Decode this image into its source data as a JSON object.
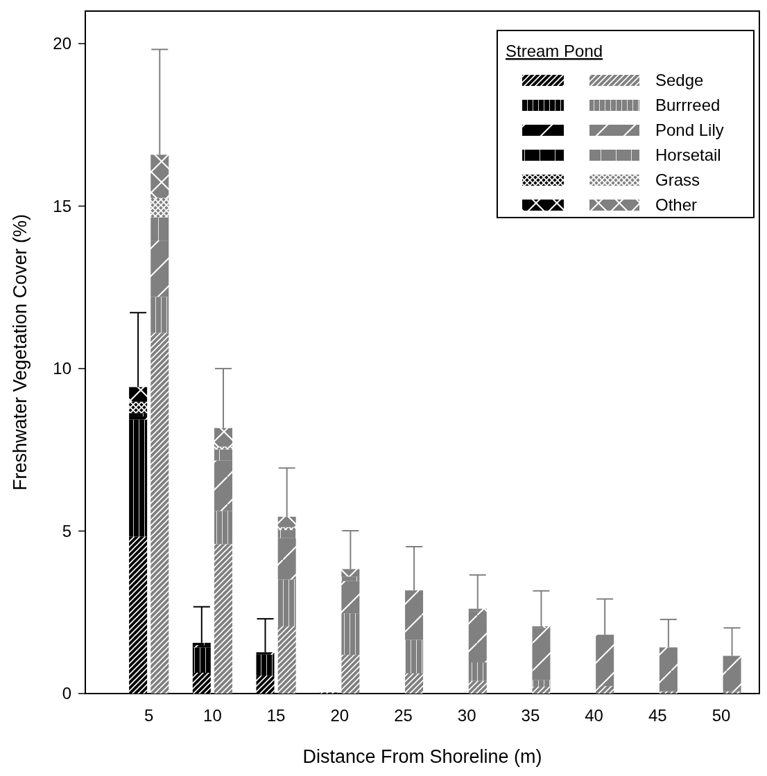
{
  "chart_data": {
    "type": "bar",
    "xlabel": "Distance From Shoreline (m)",
    "ylabel": "Freshwater Vegetation Cover (%)",
    "legend_title": "Stream Pond",
    "legend": "top right",
    "grid": false,
    "xlim": [
      0,
      53
    ],
    "xticks": [
      5,
      10,
      15,
      20,
      25,
      30,
      35,
      40,
      45,
      50
    ],
    "ylim": [
      0,
      21
    ],
    "yticks": [
      0,
      5,
      10,
      15,
      20
    ],
    "series": [
      {
        "color": "#000000",
        "x": [
          4.15,
          9.15,
          14.15,
          19.15
        ],
        "base": [
          0,
          0,
          0,
          0
        ],
        "values": [
          4.83,
          0.64,
          0.55,
          0.03
        ]
      },
      {
        "color": "#000000",
        "x": [
          4.15,
          9.15,
          14.15
        ],
        "base": [
          4.83,
          0.64,
          0.55
        ],
        "values": [
          3.6,
          0.78,
          0.65
        ]
      },
      {
        "color": "#000000",
        "x": [
          4.15,
          9.15,
          14.15
        ],
        "base": [
          8.43,
          1.42,
          1.2
        ],
        "values": [
          0.1,
          0.07,
          0.07
        ],
        "errors": [
          null,
          null,
          [
            1.27,
            2.3
          ]
        ]
      },
      {
        "color": "#000000",
        "x": [
          4.15,
          9.15
        ],
        "base": [
          8.53,
          1.49
        ],
        "values": [
          0.1,
          0.07
        ],
        "errors": [
          null,
          [
            1.56,
            2.67
          ]
        ]
      },
      {
        "color": "#000000",
        "x": [
          4.15
        ],
        "base": [
          8.63
        ],
        "values": [
          0.35
        ]
      },
      {
        "color": "#000000",
        "x": [
          4.15
        ],
        "base": [
          8.98
        ],
        "values": [
          0.45
        ],
        "errors": [
          [
            9.43,
            11.72
          ]
        ]
      },
      {
        "name": "Sedge",
        "color": "#808080",
        "x": [
          5.85,
          10.85,
          15.85,
          20.85,
          25.85,
          30.85,
          35.85,
          40.85,
          45.85,
          50.85
        ],
        "base": [
          0,
          0,
          0,
          0,
          0,
          0,
          0,
          0,
          0,
          0
        ],
        "values": [
          11.1,
          4.6,
          2.07,
          1.19,
          0.62,
          0.39,
          0.21,
          0.23,
          0.07,
          0.07
        ]
      },
      {
        "name": "Burrreed",
        "color": "#808080",
        "x": [
          5.85,
          10.85,
          15.85,
          20.85,
          25.85,
          30.85,
          35.85
        ],
        "base": [
          11.1,
          4.6,
          2.07,
          1.19,
          0.62,
          0.39,
          0.21
        ],
        "values": [
          1.11,
          1.02,
          1.44,
          1.28,
          1.03,
          0.57,
          0.2
        ]
      },
      {
        "name": "Pond Lily",
        "color": "#808080",
        "x": [
          5.85,
          10.85,
          15.85,
          20.85,
          25.85,
          30.85,
          35.85,
          40.85,
          45.85,
          50.85
        ],
        "base": [
          12.21,
          5.62,
          3.51,
          2.47,
          1.65,
          0.96,
          0.41,
          0.23,
          0.07,
          0.07
        ],
        "values": [
          1.73,
          1.55,
          1.27,
          0.99,
          1.51,
          1.56,
          1.61,
          1.58,
          1.35,
          1.09
        ],
        "errors": [
          null,
          null,
          null,
          null,
          null,
          null,
          null,
          [
            1.81,
            2.91
          ],
          [
            1.42,
            2.28
          ],
          [
            1.16,
            2.02
          ]
        ]
      },
      {
        "name": "Horsetail",
        "color": "#808080",
        "x": [
          5.85,
          10.85,
          15.85,
          20.85
        ],
        "base": [
          13.94,
          7.17,
          4.78,
          3.46
        ],
        "values": [
          0.71,
          0.34,
          0.25,
          0.14
        ]
      },
      {
        "name": "Grass",
        "color": "#808080",
        "x": [
          5.85,
          10.85,
          15.85
        ],
        "base": [
          14.65,
          7.51,
          5.03
        ],
        "values": [
          0.6,
          0.09,
          0.09
        ]
      },
      {
        "name": "Other",
        "color": "#808080",
        "x": [
          5.85,
          10.85,
          15.85,
          20.85,
          25.85,
          30.85,
          35.85
        ],
        "base": [
          15.25,
          7.6,
          5.12,
          3.6,
          3.16,
          2.52,
          2.02
        ],
        "values": [
          1.33,
          0.57,
          0.32,
          0.23,
          0.02,
          0.09,
          0.05
        ],
        "errors": [
          [
            16.58,
            19.82
          ],
          [
            8.17,
            10.0
          ],
          [
            5.44,
            6.94
          ],
          [
            3.83,
            5.01
          ],
          [
            3.18,
            4.52
          ],
          [
            2.61,
            3.65
          ],
          [
            2.07,
            3.16
          ]
        ]
      }
    ]
  }
}
